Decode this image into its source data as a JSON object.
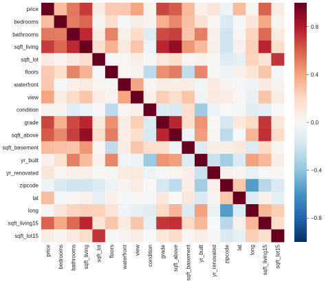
{
  "chart_data": {
    "type": "heatmap",
    "variables": [
      "price",
      "bedrooms",
      "bathrooms",
      "sqft_living",
      "sqft_lot",
      "floors",
      "waterfront",
      "view",
      "condition",
      "grade",
      "sqft_above",
      "sqft_basement",
      "yr_built",
      "yr_renovated",
      "zipcode",
      "lat",
      "long",
      "sqft_living15",
      "sqft_lot15"
    ],
    "matrix": [
      [
        1.0,
        0.31,
        0.53,
        0.7,
        0.09,
        0.26,
        0.27,
        0.4,
        0.04,
        0.67,
        0.61,
        0.32,
        0.05,
        0.13,
        -0.05,
        0.31,
        0.02,
        0.59,
        0.08
      ],
      [
        0.31,
        1.0,
        0.52,
        0.58,
        0.03,
        0.18,
        -0.01,
        0.08,
        0.03,
        0.36,
        0.48,
        0.3,
        0.15,
        0.02,
        -0.15,
        -0.01,
        0.13,
        0.39,
        0.03
      ],
      [
        0.53,
        0.52,
        1.0,
        0.75,
        0.09,
        0.5,
        0.06,
        0.19,
        -0.12,
        0.66,
        0.69,
        0.28,
        0.51,
        0.05,
        -0.2,
        0.02,
        0.22,
        0.57,
        0.09
      ],
      [
        0.7,
        0.58,
        0.75,
        1.0,
        0.17,
        0.35,
        0.1,
        0.28,
        -0.06,
        0.76,
        0.88,
        0.44,
        0.32,
        0.06,
        -0.2,
        0.05,
        0.24,
        0.76,
        0.18
      ],
      [
        0.09,
        0.03,
        0.09,
        0.17,
        1.0,
        -0.01,
        0.02,
        0.07,
        -0.01,
        0.11,
        0.18,
        0.02,
        0.05,
        0.01,
        -0.13,
        -0.09,
        0.23,
        0.14,
        0.72
      ],
      [
        0.26,
        0.18,
        0.5,
        0.35,
        -0.01,
        1.0,
        0.02,
        0.03,
        -0.26,
        0.46,
        0.52,
        -0.25,
        0.49,
        0.01,
        -0.06,
        0.05,
        0.13,
        0.28,
        -0.01
      ],
      [
        0.27,
        -0.01,
        0.06,
        0.1,
        0.02,
        0.02,
        1.0,
        0.4,
        0.02,
        0.08,
        0.07,
        0.08,
        -0.03,
        0.09,
        0.03,
        -0.01,
        -0.04,
        0.09,
        0.03
      ],
      [
        0.4,
        0.08,
        0.19,
        0.28,
        0.07,
        0.03,
        0.4,
        1.0,
        0.05,
        0.25,
        0.17,
        0.28,
        -0.05,
        0.1,
        0.08,
        0.01,
        -0.08,
        0.28,
        0.07
      ],
      [
        0.04,
        0.03,
        -0.12,
        -0.06,
        -0.01,
        -0.26,
        0.02,
        0.05,
        1.0,
        -0.14,
        -0.16,
        0.17,
        -0.36,
        -0.06,
        0.0,
        -0.01,
        -0.11,
        -0.09,
        -0.0
      ],
      [
        0.67,
        0.36,
        0.66,
        0.76,
        0.11,
        0.46,
        0.08,
        0.25,
        -0.14,
        1.0,
        0.76,
        0.17,
        0.45,
        0.01,
        -0.18,
        0.11,
        0.2,
        0.71,
        0.12
      ],
      [
        0.61,
        0.48,
        0.69,
        0.88,
        0.18,
        0.52,
        0.07,
        0.17,
        -0.16,
        0.76,
        1.0,
        -0.05,
        0.42,
        0.02,
        -0.26,
        -0.0,
        0.34,
        0.73,
        0.19
      ],
      [
        0.32,
        0.3,
        0.28,
        0.44,
        0.02,
        -0.25,
        0.08,
        0.28,
        0.17,
        0.17,
        -0.05,
        1.0,
        -0.13,
        0.07,
        0.07,
        0.11,
        -0.14,
        0.2,
        0.02
      ],
      [
        0.05,
        0.15,
        0.51,
        0.32,
        0.05,
        0.49,
        -0.03,
        -0.05,
        -0.36,
        0.45,
        0.42,
        -0.13,
        1.0,
        -0.22,
        -0.35,
        -0.15,
        0.41,
        0.33,
        0.07
      ],
      [
        0.13,
        0.02,
        0.05,
        0.06,
        0.01,
        0.01,
        0.09,
        0.1,
        -0.06,
        0.01,
        0.02,
        0.07,
        -0.22,
        1.0,
        0.06,
        0.03,
        -0.07,
        -0.0,
        0.01
      ],
      [
        -0.05,
        -0.15,
        -0.2,
        -0.2,
        -0.13,
        -0.06,
        0.03,
        0.08,
        0.0,
        -0.18,
        -0.26,
        0.07,
        -0.35,
        0.06,
        1.0,
        0.27,
        -0.56,
        -0.28,
        -0.15
      ],
      [
        0.31,
        -0.01,
        0.02,
        0.05,
        -0.09,
        0.05,
        -0.01,
        0.01,
        -0.01,
        0.11,
        -0.0,
        0.11,
        -0.15,
        0.03,
        0.27,
        1.0,
        -0.14,
        0.05,
        -0.09
      ],
      [
        0.02,
        0.13,
        0.22,
        0.24,
        0.23,
        0.13,
        -0.04,
        -0.08,
        -0.11,
        0.2,
        0.34,
        -0.14,
        0.41,
        -0.07,
        -0.56,
        -0.14,
        1.0,
        0.33,
        0.25
      ],
      [
        0.59,
        0.39,
        0.57,
        0.76,
        0.14,
        0.28,
        0.09,
        0.28,
        -0.09,
        0.71,
        0.73,
        0.2,
        0.33,
        -0.0,
        -0.28,
        0.05,
        0.33,
        1.0,
        0.18
      ],
      [
        0.08,
        0.03,
        0.09,
        0.18,
        0.72,
        -0.01,
        0.03,
        0.07,
        -0.0,
        0.12,
        0.19,
        0.02,
        0.07,
        0.01,
        -0.15,
        -0.09,
        0.25,
        0.18,
        1.0
      ]
    ],
    "colorbar": {
      "min": -1.0,
      "max": 1.0,
      "ticks": [
        "0.8",
        "0.4",
        "0.0",
        "−0.4",
        "−0.8"
      ],
      "tick_values": [
        0.8,
        0.4,
        0.0,
        -0.4,
        -0.8
      ]
    },
    "colormap": [
      "#053061",
      "#2166ac",
      "#4393c3",
      "#92c5de",
      "#d1e5f0",
      "#f7f7f7",
      "#fddbc7",
      "#f4a582",
      "#d6604d",
      "#b2182b",
      "#67001f"
    ],
    "title": "",
    "xlabel": "",
    "ylabel": ""
  }
}
